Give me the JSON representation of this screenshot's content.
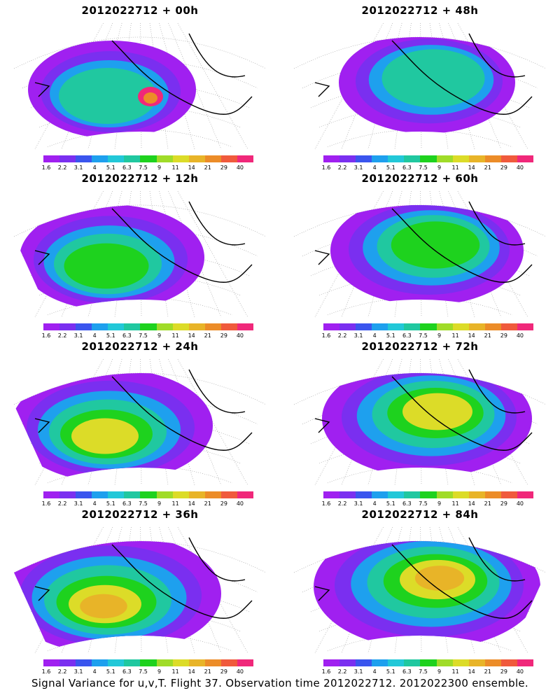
{
  "panels": [
    {
      "title": "2012022712 + 00h",
      "col": 0,
      "row": 0
    },
    {
      "title": "2012022712 + 48h",
      "col": 1,
      "row": 0
    },
    {
      "title": "2012022712 + 12h",
      "col": 0,
      "row": 1
    },
    {
      "title": "2012022712 + 60h",
      "col": 1,
      "row": 1
    },
    {
      "title": "2012022712 + 24h",
      "col": 0,
      "row": 2
    },
    {
      "title": "2012022712 + 72h",
      "col": 1,
      "row": 2
    },
    {
      "title": "2012022712 + 36h",
      "col": 0,
      "row": 3
    },
    {
      "title": "2012022712 + 84h",
      "col": 1,
      "row": 3
    }
  ],
  "colorbar": {
    "colors": [
      "#a020f0",
      "#7a2ff0",
      "#3a55ee",
      "#1ea0ee",
      "#22c8d8",
      "#20c8a0",
      "#1ed21e",
      "#a0dc28",
      "#dcdc28",
      "#e8b428",
      "#ec8c28",
      "#f05a3c",
      "#f0287a"
    ],
    "labels": [
      "1.6",
      "2.2",
      "3.1",
      "4",
      "5.1",
      "6.3",
      "7.5",
      "9",
      "11",
      "14",
      "21",
      "29",
      "40"
    ]
  },
  "footer": "Signal Variance for u,v,T. Flight 37. Observation time 2012022712. 2012022300 ensemble."
}
